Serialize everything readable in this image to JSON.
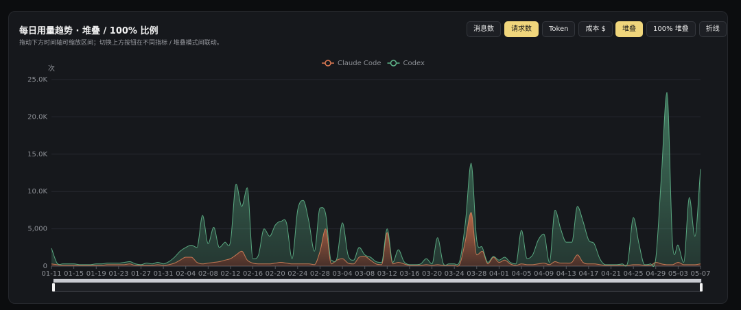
{
  "chart_data": {
    "type": "area",
    "stacked": true,
    "title": "每日用量趋势 · 堆叠 / 100% 比例",
    "subtitle": "拖动下方时间轴可缩放区间；切换上方按钮在不同指标 / 堆叠模式间联动。",
    "y_unit": "次",
    "metric_buttons": [
      "消息数",
      "请求数",
      "Token",
      "成本 $"
    ],
    "active_metric": 1,
    "mode_buttons": [
      "堆叠",
      "100% 堆叠",
      "折线"
    ],
    "active_mode": 0,
    "legend": "top",
    "grid": true,
    "ylim": [
      0,
      25000
    ],
    "yticks": [
      0,
      {
        "value": 5000,
        "label": "5,000"
      },
      {
        "value": 10000,
        "label": "10.0K"
      },
      {
        "value": 15000,
        "label": "15.0K"
      },
      {
        "value": 20000,
        "label": "20.0K"
      },
      {
        "value": 25000,
        "label": "25.0K"
      }
    ],
    "categories": [
      "01-11",
      null,
      null,
      null,
      "01-15",
      null,
      null,
      null,
      "01-19",
      null,
      null,
      null,
      "01-23",
      null,
      null,
      null,
      "01-27",
      null,
      null,
      null,
      "01-31",
      null,
      null,
      null,
      "02-04",
      null,
      null,
      null,
      "02-08",
      null,
      null,
      null,
      "02-12",
      null,
      null,
      null,
      "02-16",
      null,
      null,
      null,
      "02-20",
      null,
      null,
      null,
      "02-24",
      null,
      null,
      null,
      "02-28",
      null,
      null,
      null,
      "03-04",
      null,
      null,
      null,
      "03-08",
      null,
      null,
      null,
      "03-12",
      null,
      null,
      null,
      "03-16",
      null,
      null,
      null,
      "03-20",
      null,
      null,
      null,
      "03-24",
      null,
      null,
      null,
      "03-28",
      null,
      null,
      null,
      "04-01",
      null,
      null,
      null,
      "04-05",
      null,
      null,
      null,
      "04-09",
      null,
      null,
      null,
      "04-13",
      null,
      null,
      null,
      "04-17",
      null,
      null,
      null,
      "04-21",
      null,
      null,
      null,
      "04-25",
      null,
      null,
      null,
      "04-29",
      null,
      null,
      null,
      "05-03",
      null,
      null,
      null,
      "05-07"
    ],
    "series": [
      {
        "name": "Claude Code",
        "color": "#e07b54",
        "values": [
          300,
          200,
          100,
          100,
          100,
          100,
          100,
          100,
          100,
          100,
          200,
          200,
          200,
          200,
          300,
          100,
          100,
          100,
          100,
          200,
          100,
          200,
          400,
          800,
          1200,
          1200,
          500,
          300,
          400,
          500,
          600,
          800,
          1000,
          1500,
          2000,
          800,
          400,
          300,
          300,
          300,
          400,
          500,
          400,
          300,
          300,
          300,
          300,
          200,
          2000,
          5000,
          300,
          800,
          1000,
          400,
          300,
          1200,
          1300,
          800,
          300,
          200,
          4500,
          300,
          500,
          300,
          100,
          100,
          100,
          200,
          100,
          200,
          100,
          100,
          100,
          300,
          3500,
          7200,
          1500,
          2000,
          300,
          1200,
          500,
          800,
          300,
          100,
          300,
          200,
          200,
          300,
          400,
          200,
          600,
          400,
          400,
          500,
          1500,
          500,
          300,
          300,
          200,
          100,
          100,
          100,
          100,
          100,
          200,
          200,
          100,
          100,
          500,
          300,
          200,
          200,
          500,
          200,
          200,
          200,
          300
        ]
      },
      {
        "name": "Codex",
        "color": "#5fb58a",
        "values": [
          2100,
          200,
          200,
          200,
          200,
          100,
          100,
          100,
          200,
          200,
          200,
          200,
          200,
          300,
          300,
          200,
          100,
          300,
          200,
          300,
          200,
          400,
          800,
          1200,
          1300,
          1600,
          2000,
          6500,
          2600,
          4700,
          1900,
          2400,
          2300,
          9500,
          6000,
          9700,
          600,
          1200,
          4700,
          3700,
          5100,
          5500,
          5400,
          700,
          7200,
          8500,
          5700,
          1800,
          5800,
          2000,
          500,
          200,
          4800,
          1100,
          500,
          1300,
          200,
          400,
          300,
          300,
          500,
          200,
          1700,
          300,
          100,
          100,
          200,
          800,
          200,
          3600,
          300,
          200,
          200,
          500,
          2500,
          6600,
          2000,
          500,
          200,
          100,
          300,
          400,
          200,
          200,
          4500,
          800,
          1300,
          3200,
          3900,
          300,
          6900,
          4600,
          2800,
          2700,
          6500,
          5500,
          3200,
          2700,
          800,
          100,
          100,
          100,
          200,
          400,
          6300,
          2800,
          100,
          200,
          500,
          11700,
          23100,
          2800,
          2300,
          300,
          9000,
          3800,
          12700
        ]
      }
    ]
  }
}
